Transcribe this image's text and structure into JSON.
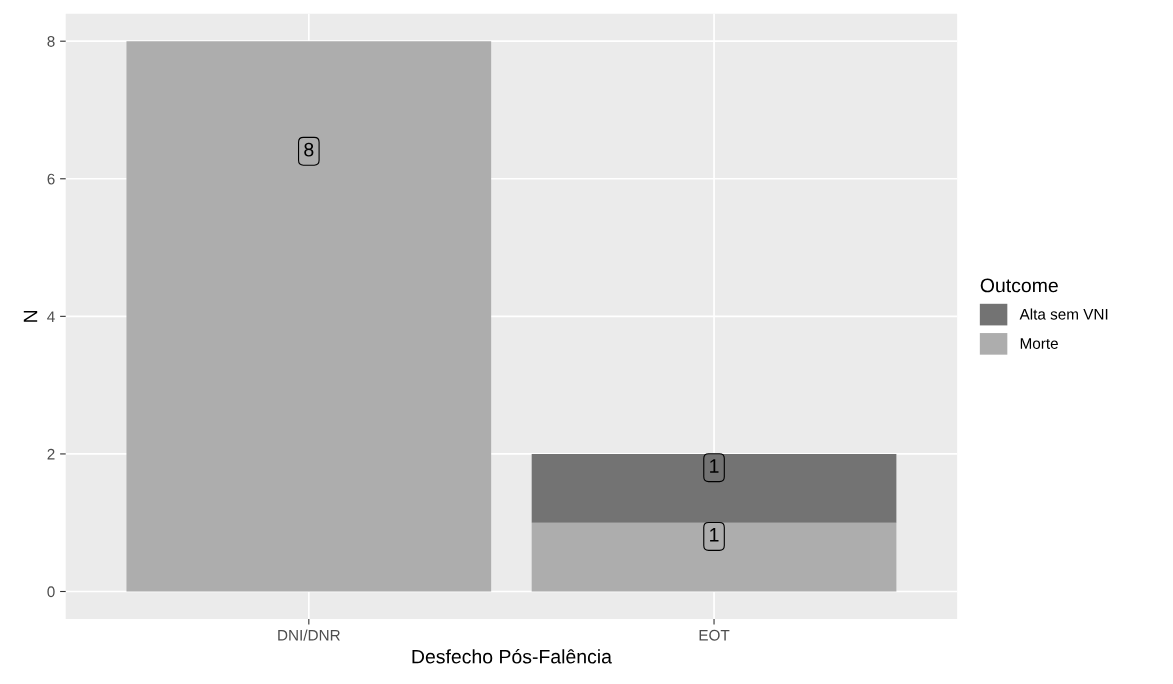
{
  "chart_data": {
    "type": "bar",
    "stacked": true,
    "xlabel": "Desfecho Pós-Falência",
    "ylabel": "N",
    "legend_title": "Outcome",
    "categories": [
      "DNI/DNR",
      "EOT"
    ],
    "series": [
      {
        "name": "Morte",
        "color": "#adadad",
        "values": [
          8,
          1
        ]
      },
      {
        "name": "Alta sem VNI",
        "color": "#737373",
        "values": [
          null,
          1
        ]
      }
    ],
    "ylim": [
      -0.4,
      8.4
    ],
    "yticks": [
      0,
      2,
      4,
      6,
      8
    ],
    "grid": true,
    "legend": "right",
    "data_labels": true
  }
}
